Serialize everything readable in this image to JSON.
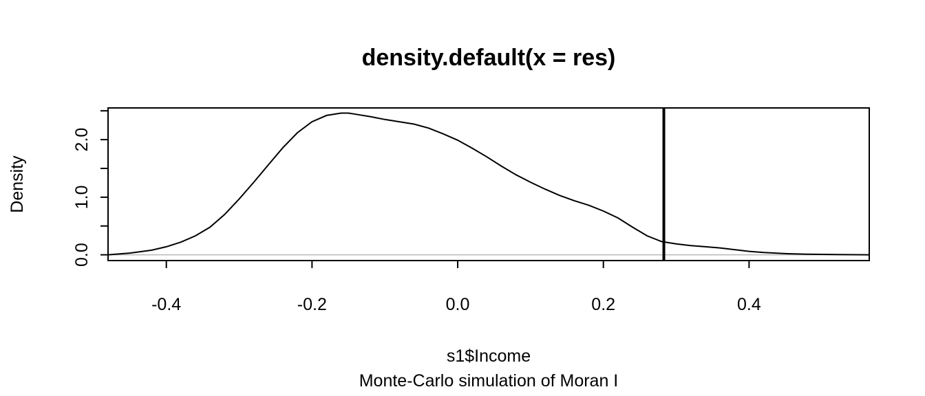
{
  "chart_data": {
    "type": "line",
    "title": "density.default(x = res)",
    "xlabel": "s1$Income",
    "subtitle": "Monte-Carlo simulation of Moran I",
    "ylabel": "Density",
    "xlim": [
      -0.48,
      0.565
    ],
    "ylim": [
      -0.1,
      2.55
    ],
    "x_ticks": [
      -0.4,
      -0.2,
      0.0,
      0.2,
      0.4
    ],
    "x_tick_labels": [
      "-0.4",
      "-0.2",
      "0.0",
      "0.2",
      "0.4"
    ],
    "y_ticks": [
      0.0,
      0.5,
      1.0,
      1.5,
      2.0,
      2.5
    ],
    "y_tick_labels": [
      "0.0",
      "",
      "1.0",
      "",
      "2.0",
      ""
    ],
    "grid": false,
    "legend": "none",
    "baseline": 0.0,
    "observed_value": 0.283,
    "series": [
      {
        "x": [
          -0.48,
          -0.45,
          -0.42,
          -0.4,
          -0.38,
          -0.36,
          -0.34,
          -0.32,
          -0.3,
          -0.28,
          -0.26,
          -0.24,
          -0.22,
          -0.2,
          -0.18,
          -0.16,
          -0.15,
          -0.14,
          -0.12,
          -0.1,
          -0.08,
          -0.06,
          -0.04,
          -0.02,
          0.0,
          0.02,
          0.04,
          0.06,
          0.08,
          0.1,
          0.12,
          0.14,
          0.16,
          0.18,
          0.2,
          0.22,
          0.24,
          0.26,
          0.28,
          0.3,
          0.32,
          0.34,
          0.36,
          0.38,
          0.4,
          0.42,
          0.45,
          0.48,
          0.52,
          0.565
        ],
        "y": [
          0.0,
          0.03,
          0.08,
          0.14,
          0.22,
          0.33,
          0.48,
          0.7,
          0.97,
          1.26,
          1.56,
          1.86,
          2.12,
          2.31,
          2.42,
          2.46,
          2.46,
          2.44,
          2.4,
          2.35,
          2.31,
          2.27,
          2.2,
          2.1,
          1.99,
          1.85,
          1.7,
          1.54,
          1.39,
          1.26,
          1.14,
          1.03,
          0.94,
          0.86,
          0.76,
          0.64,
          0.48,
          0.33,
          0.23,
          0.19,
          0.16,
          0.14,
          0.12,
          0.09,
          0.06,
          0.04,
          0.02,
          0.01,
          0.005,
          0.0
        ]
      }
    ]
  }
}
